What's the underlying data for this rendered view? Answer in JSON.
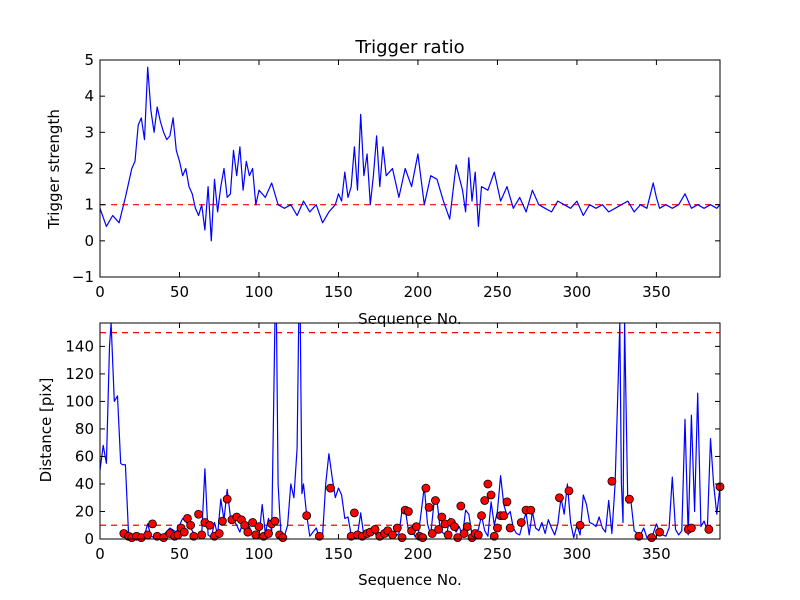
{
  "colors": {
    "line": "#0000ff",
    "threshold": "#ff0000",
    "marker_fill": "#ff0000",
    "marker_edge": "#000000",
    "axes": "#000000",
    "background": "#ffffff"
  },
  "chart_data": [
    {
      "type": "line",
      "title": "Trigger ratio",
      "xlabel": "Sequence No.",
      "ylabel": "Trigger strength",
      "xlim": [
        0,
        390
      ],
      "ylim": [
        -1,
        5
      ],
      "xticks": [
        0,
        50,
        100,
        150,
        200,
        250,
        300,
        350
      ],
      "yticks": [
        -1,
        0,
        1,
        2,
        3,
        4,
        5
      ],
      "x_tick_labels": [
        "0",
        "50",
        "100",
        "150",
        "200",
        "250",
        "300",
        "350"
      ],
      "y_tick_labels": [
        "−1",
        "0",
        "1",
        "2",
        "3",
        "4",
        "5"
      ],
      "grid": false,
      "hlines": [
        1
      ],
      "series": [
        {
          "x": [
            0,
            4,
            8,
            12,
            16,
            20,
            22,
            24,
            26,
            28,
            30,
            32,
            34,
            36,
            38,
            40,
            42,
            44,
            46,
            48,
            50,
            52,
            54,
            56,
            58,
            60,
            62,
            64,
            66,
            68,
            70,
            72,
            74,
            76,
            78,
            80,
            82,
            84,
            86,
            88,
            90,
            92,
            94,
            96,
            98,
            100,
            104,
            108,
            112,
            116,
            120,
            124,
            128,
            132,
            136,
            140,
            144,
            148,
            150,
            152,
            154,
            156,
            158,
            160,
            162,
            164,
            166,
            168,
            170,
            172,
            174,
            176,
            178,
            180,
            184,
            188,
            192,
            196,
            200,
            204,
            208,
            212,
            216,
            220,
            224,
            228,
            230,
            232,
            234,
            236,
            238,
            240,
            244,
            248,
            252,
            256,
            260,
            264,
            268,
            272,
            276,
            280,
            284,
            288,
            292,
            296,
            300,
            304,
            308,
            312,
            316,
            320,
            324,
            328,
            332,
            336,
            340,
            344,
            348,
            350,
            352,
            356,
            360,
            364,
            368,
            372,
            376,
            380,
            384,
            388,
            390
          ],
          "values": [
            0.9,
            0.4,
            0.7,
            0.5,
            1.2,
            2.0,
            2.2,
            3.2,
            3.4,
            2.8,
            4.8,
            3.6,
            3.0,
            3.7,
            3.3,
            3.0,
            2.8,
            2.9,
            3.4,
            2.5,
            2.2,
            1.8,
            2.0,
            1.5,
            1.3,
            0.9,
            0.7,
            1.0,
            0.3,
            1.5,
            0.0,
            1.7,
            0.8,
            1.5,
            2.0,
            1.2,
            1.3,
            2.5,
            1.8,
            2.6,
            1.4,
            2.2,
            1.8,
            2.0,
            1.0,
            1.4,
            1.2,
            1.6,
            1.0,
            0.9,
            1.0,
            0.7,
            1.1,
            0.8,
            1.0,
            0.5,
            0.8,
            1.0,
            1.3,
            1.1,
            1.9,
            1.2,
            1.5,
            2.6,
            1.4,
            3.5,
            1.8,
            2.4,
            1.0,
            1.8,
            2.9,
            1.5,
            2.6,
            1.8,
            2.0,
            1.2,
            2.0,
            1.5,
            2.4,
            1.0,
            1.8,
            1.7,
            1.1,
            0.6,
            2.1,
            1.4,
            0.8,
            2.3,
            1.1,
            1.9,
            0.4,
            1.5,
            1.4,
            1.9,
            1.1,
            1.5,
            0.9,
            1.2,
            0.8,
            1.4,
            1.0,
            0.9,
            0.8,
            1.1,
            1.0,
            0.9,
            1.1,
            0.7,
            1.0,
            0.9,
            1.0,
            0.8,
            0.9,
            1.0,
            1.1,
            0.8,
            1.0,
            0.9,
            1.6,
            1.2,
            0.9,
            1.0,
            0.9,
            1.0,
            1.3,
            0.9,
            1.0,
            0.9,
            1.0,
            0.9,
            1.0
          ]
        }
      ]
    },
    {
      "type": "line",
      "title": "",
      "xlabel": "Sequence No.",
      "ylabel": "Distance [pix]",
      "xlim": [
        0,
        390
      ],
      "ylim": [
        0,
        157
      ],
      "xticks": [
        0,
        50,
        100,
        150,
        200,
        250,
        300,
        350
      ],
      "yticks": [
        0,
        20,
        40,
        60,
        80,
        100,
        120,
        140
      ],
      "x_tick_labels": [
        "0",
        "50",
        "100",
        "150",
        "200",
        "250",
        "300",
        "350"
      ],
      "y_tick_labels": [
        "0",
        "20",
        "40",
        "60",
        "80",
        "100",
        "120",
        "140"
      ],
      "grid": false,
      "hlines": [
        10,
        150
      ],
      "series": [
        {
          "x": [
            0,
            2,
            4,
            6,
            7,
            9,
            11,
            13,
            14,
            16,
            18,
            20,
            22,
            24,
            26,
            28,
            30,
            32,
            34,
            36,
            38,
            40,
            44,
            48,
            52,
            56,
            60,
            64,
            66,
            68,
            70,
            72,
            74,
            76,
            78,
            80,
            82,
            84,
            86,
            88,
            90,
            92,
            94,
            96,
            98,
            100,
            102,
            104,
            106,
            108,
            109,
            110,
            111,
            112,
            113,
            114,
            116,
            118,
            120,
            122,
            124,
            125,
            126,
            127,
            128,
            130,
            132,
            134,
            136,
            138,
            140,
            142,
            144,
            146,
            148,
            150,
            152,
            154,
            156,
            158,
            160,
            162,
            164,
            166,
            168,
            170,
            172,
            174,
            176,
            178,
            180,
            182,
            184,
            186,
            188,
            190,
            192,
            194,
            196,
            198,
            200,
            202,
            204,
            206,
            208,
            210,
            212,
            214,
            216,
            218,
            220,
            222,
            224,
            226,
            228,
            230,
            232,
            234,
            236,
            238,
            240,
            242,
            244,
            246,
            248,
            250,
            252,
            254,
            256,
            258,
            260,
            262,
            264,
            266,
            268,
            270,
            272,
            274,
            276,
            278,
            280,
            282,
            284,
            286,
            288,
            290,
            292,
            294,
            296,
            298,
            300,
            302,
            304,
            306,
            308,
            310,
            312,
            314,
            316,
            318,
            320,
            322,
            324,
            326,
            327,
            328,
            329,
            330,
            332,
            334,
            336,
            338,
            340,
            342,
            344,
            346,
            348,
            350,
            352,
            354,
            356,
            358,
            360,
            362,
            364,
            366,
            368,
            370,
            372,
            374,
            376,
            378,
            380,
            382,
            384,
            386,
            388,
            390
          ],
          "values": [
            50,
            68,
            55,
            140,
            157,
            100,
            104,
            55,
            54,
            54,
            3,
            2,
            1,
            2,
            1,
            3,
            11,
            2,
            1,
            4,
            2,
            3,
            8,
            5,
            15,
            10,
            2,
            3,
            51,
            3,
            1,
            12,
            3,
            29,
            14,
            36,
            16,
            14,
            10,
            5,
            13,
            3,
            9,
            2,
            4,
            2,
            25,
            4,
            15,
            6,
            80,
            157,
            157,
            40,
            20,
            1,
            2,
            10,
            40,
            30,
            66,
            157,
            157,
            33,
            40,
            17,
            2,
            5,
            8,
            1,
            3,
            40,
            62,
            45,
            30,
            37,
            32,
            15,
            16,
            3,
            2,
            3,
            19,
            2,
            3,
            5,
            7,
            2,
            4,
            6,
            3,
            8,
            1,
            2,
            4,
            21,
            22,
            6,
            9,
            2,
            1,
            19,
            38,
            11,
            3,
            25,
            28,
            7,
            4,
            3,
            15,
            10,
            5,
            9,
            2,
            21,
            18,
            3,
            4,
            7,
            17,
            6,
            2,
            27,
            10,
            20,
            46,
            25,
            17,
            20,
            8,
            4,
            3,
            12,
            19,
            3,
            20,
            8,
            6,
            12,
            4,
            14,
            8,
            3,
            11,
            30,
            18,
            40,
            12,
            1,
            10,
            3,
            32,
            25,
            12,
            11,
            9,
            16,
            8,
            5,
            28,
            4,
            40,
            118,
            157,
            40,
            12,
            157,
            26,
            27,
            6,
            4,
            3,
            8,
            1,
            2,
            4,
            11,
            5,
            3,
            2,
            8,
            45,
            7,
            3,
            6,
            87,
            3,
            90,
            20,
            106,
            9,
            13,
            6,
            73,
            40,
            18,
            38
          ]
        }
      ],
      "markers": {
        "x": [
          15,
          18,
          20,
          23,
          26,
          30,
          33,
          36,
          40,
          44,
          47,
          49,
          51,
          53,
          55,
          57,
          59,
          62,
          64,
          66,
          69,
          72,
          75,
          77,
          80,
          83,
          86,
          89,
          91,
          93,
          96,
          98,
          100,
          103,
          106,
          108,
          110,
          113,
          115,
          130,
          138,
          145,
          158,
          160,
          162,
          165,
          168,
          170,
          173,
          176,
          179,
          181,
          184,
          187,
          190,
          192,
          194,
          196,
          199,
          201,
          203,
          205,
          207,
          209,
          211,
          213,
          215,
          217,
          219,
          221,
          223,
          225,
          227,
          229,
          231,
          234,
          236,
          238,
          240,
          242,
          244,
          246,
          248,
          250,
          252,
          254,
          256,
          258,
          265,
          268,
          271,
          289,
          295,
          302,
          322,
          333,
          339,
          347,
          352,
          370,
          372,
          383,
          390
        ],
        "y": [
          4,
          2,
          1,
          2,
          1,
          3,
          11,
          2,
          1,
          4,
          2,
          3,
          8,
          5,
          15,
          10,
          2,
          18,
          3,
          12,
          10,
          2,
          4,
          13,
          29,
          14,
          16,
          14,
          10,
          5,
          12,
          3,
          9,
          2,
          4,
          11,
          13,
          3,
          1,
          17,
          2,
          37,
          2,
          19,
          3,
          2,
          4,
          5,
          7,
          2,
          4,
          6,
          3,
          8,
          1,
          21,
          20,
          6,
          9,
          2,
          1,
          37,
          23,
          4,
          28,
          7,
          16,
          11,
          3,
          12,
          9,
          1,
          24,
          4,
          9,
          1,
          4,
          3,
          17,
          28,
          40,
          32,
          2,
          8,
          17,
          17,
          27,
          8,
          12,
          21,
          21,
          30,
          35,
          10,
          42,
          29,
          2,
          1,
          5,
          7,
          8,
          7,
          38
        ]
      }
    }
  ]
}
